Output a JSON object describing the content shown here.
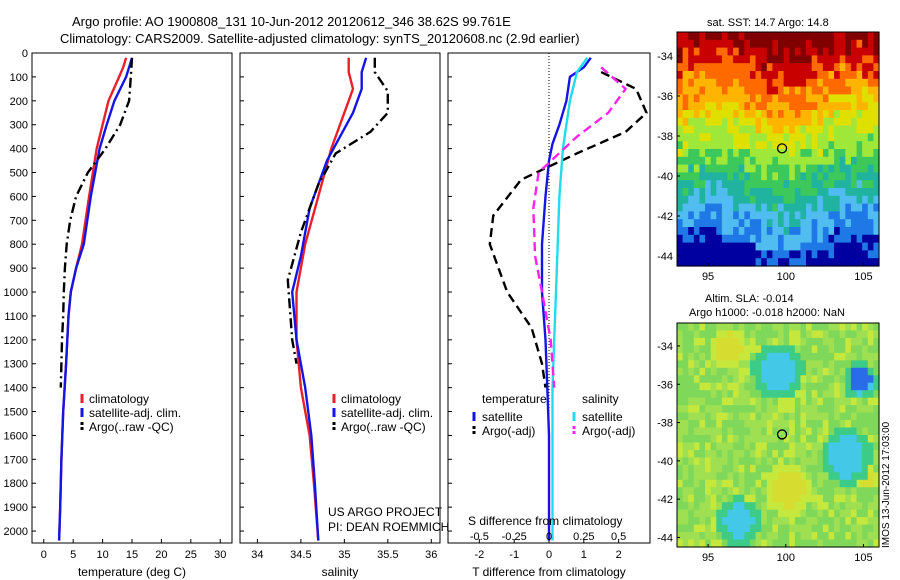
{
  "header": {
    "line1": "Argo profile: AO 1900808_131 10-Jun-2012 20120612_346 38.62S 99.761E",
    "line2": "Climatology: CARS2009. Satellite-adjusted climatology: synTS_20120608.nc (2.9d earlier)"
  },
  "colors": {
    "red": "#e8202a",
    "blue": "#1414e6",
    "black": "#000000",
    "cyan": "#22dcee",
    "magenta": "#ff22ee"
  },
  "project_note": {
    "line1": "US ARGO PROJECT",
    "line2": "PI: DEAN ROEMMICH"
  },
  "side_note": "IMOS 13-Jun-2012 17:03:00",
  "chart_data": [
    {
      "type": "line",
      "xlabel": "temperature (deg C)",
      "xlim": [
        -2,
        32
      ],
      "ylim": [
        2050,
        0
      ],
      "xticks": [
        "0",
        "5",
        "10",
        "15",
        "20",
        "25",
        "30"
      ],
      "yticks": [
        "0",
        "100",
        "200",
        "300",
        "400",
        "500",
        "600",
        "700",
        "800",
        "900",
        "1000",
        "1100",
        "1200",
        "1300",
        "1400",
        "1500",
        "1600",
        "1700",
        "1800",
        "1900",
        "2000"
      ],
      "legend": [
        "climatology",
        "satellite-adj. clim.",
        "Argo(..raw -QC)"
      ],
      "series": [
        {
          "name": "climatology",
          "color": "red",
          "dash": "solid",
          "points": [
            [
              14,
              20
            ],
            [
              13.5,
              60
            ],
            [
              12.8,
              100
            ],
            [
              11,
              200
            ],
            [
              10,
              300
            ],
            [
              9,
              400
            ],
            [
              7.7,
              600
            ],
            [
              6.5,
              800
            ],
            [
              5.5,
              900
            ],
            [
              4.6,
              1000
            ],
            [
              4.2,
              1100
            ],
            [
              3.8,
              1300
            ],
            [
              3.3,
              1500
            ],
            [
              3.0,
              1700
            ],
            [
              2.8,
              1900
            ],
            [
              2.6,
              2040
            ]
          ]
        },
        {
          "name": "satellite-adj. clim.",
          "color": "blue",
          "dash": "solid",
          "points": [
            [
              15,
              20
            ],
            [
              14.5,
              60
            ],
            [
              14,
              100
            ],
            [
              12,
              200
            ],
            [
              10.7,
              300
            ],
            [
              9.5,
              400
            ],
            [
              8,
              600
            ],
            [
              6.8,
              800
            ],
            [
              5.5,
              900
            ],
            [
              4.6,
              1000
            ],
            [
              4.2,
              1100
            ],
            [
              3.8,
              1300
            ],
            [
              3.3,
              1500
            ],
            [
              3.0,
              1700
            ],
            [
              2.8,
              1900
            ],
            [
              2.6,
              2040
            ]
          ]
        },
        {
          "name": "Argo(..raw -QC)",
          "color": "black",
          "dash": "dashdot",
          "points": [
            [
              15,
              20
            ],
            [
              14.8,
              100
            ],
            [
              14.5,
              200
            ],
            [
              13,
              300
            ],
            [
              10.5,
              400
            ],
            [
              7.5,
              500
            ],
            [
              5.5,
              600
            ],
            [
              4.5,
              700
            ],
            [
              3.9,
              800
            ],
            [
              3.6,
              900
            ],
            [
              3.4,
              1000
            ],
            [
              3.3,
              1100
            ],
            [
              3.1,
              1200
            ],
            [
              3.0,
              1300
            ],
            [
              2.9,
              1400
            ]
          ]
        }
      ]
    },
    {
      "type": "line",
      "xlabel": "salinity",
      "xlim": [
        33.8,
        36.1
      ],
      "ylim": [
        2050,
        0
      ],
      "xticks": [
        "34",
        "34.5",
        "35",
        "35.5",
        "36"
      ],
      "legend": [
        "climatology",
        "satellite-adj. clim.",
        "Argo(..raw -QC)"
      ],
      "series": [
        {
          "name": "climatology",
          "color": "red",
          "dash": "solid",
          "points": [
            [
              35.05,
              20
            ],
            [
              35.05,
              80
            ],
            [
              35.1,
              150
            ],
            [
              35.05,
              200
            ],
            [
              34.95,
              300
            ],
            [
              34.85,
              400
            ],
            [
              34.7,
              600
            ],
            [
              34.55,
              800
            ],
            [
              34.45,
              1000
            ],
            [
              34.45,
              1200
            ],
            [
              34.5,
              1400
            ],
            [
              34.6,
              1600
            ],
            [
              34.65,
              1800
            ],
            [
              34.7,
              2040
            ]
          ]
        },
        {
          "name": "satellite-adj. clim.",
          "color": "blue",
          "dash": "solid",
          "points": [
            [
              35.25,
              20
            ],
            [
              35.2,
              80
            ],
            [
              35.2,
              150
            ],
            [
              35.1,
              250
            ],
            [
              34.95,
              350
            ],
            [
              34.8,
              450
            ],
            [
              34.6,
              650
            ],
            [
              34.5,
              850
            ],
            [
              34.4,
              1000
            ],
            [
              34.45,
              1200
            ],
            [
              34.55,
              1400
            ],
            [
              34.62,
              1600
            ],
            [
              34.66,
              1800
            ],
            [
              34.7,
              2040
            ]
          ]
        },
        {
          "name": "Argo(..raw -QC)",
          "color": "black",
          "dash": "dashdot",
          "points": [
            [
              35.35,
              20
            ],
            [
              35.35,
              80
            ],
            [
              35.5,
              160
            ],
            [
              35.5,
              250
            ],
            [
              35.3,
              330
            ],
            [
              34.9,
              420
            ],
            [
              34.7,
              550
            ],
            [
              34.5,
              750
            ],
            [
              34.35,
              950
            ],
            [
              34.4,
              1200
            ],
            [
              34.45,
              1300
            ]
          ]
        }
      ]
    },
    {
      "type": "line",
      "title": "S difference from climatology",
      "xlabel": "T difference from climatology",
      "xlim": [
        -2.9,
        2.9
      ],
      "ylim": [
        2050,
        0
      ],
      "xticks_top": [
        "-0.5",
        "-0.25",
        "0",
        "0.25",
        "0.5"
      ],
      "xticks": [
        "-2",
        "-1",
        "0",
        "1",
        "2"
      ],
      "legend_groups": [
        {
          "title": "temperature",
          "entries": [
            "satellite",
            "Argo(-adj)"
          ]
        },
        {
          "title": "salinity",
          "entries": [
            "satellite",
            "Argo(-adj)"
          ]
        }
      ],
      "series": [
        {
          "name": "temperature satellite",
          "color": "blue",
          "dash": "solid",
          "points": [
            [
              1.2,
              20
            ],
            [
              1.0,
              60
            ],
            [
              0.6,
              100
            ],
            [
              0.5,
              200
            ],
            [
              0.3,
              300
            ],
            [
              0.1,
              380
            ],
            [
              0.0,
              450
            ],
            [
              -0.1,
              600
            ],
            [
              -0.2,
              800
            ],
            [
              -0.2,
              1000
            ],
            [
              -0.1,
              1200
            ],
            [
              -0.05,
              1400
            ],
            [
              0,
              1600
            ],
            [
              0,
              2040
            ]
          ]
        },
        {
          "name": "temperature Argo(-adj)",
          "color": "black",
          "dash": "dashed",
          "points": [
            [
              1.5,
              80
            ],
            [
              2.5,
              150
            ],
            [
              2.8,
              250
            ],
            [
              2.2,
              330
            ],
            [
              0.8,
              420
            ],
            [
              -0.8,
              530
            ],
            [
              -1.6,
              680
            ],
            [
              -1.7,
              800
            ],
            [
              -1.2,
              1000
            ],
            [
              -0.5,
              1150
            ],
            [
              -0.2,
              1300
            ],
            [
              -0.1,
              1400
            ]
          ]
        },
        {
          "name": "salinity satellite",
          "color": "cyan",
          "dash": "solid",
          "points": [
            [
              1.1,
              20
            ],
            [
              0.8,
              80
            ],
            [
              0.6,
              200
            ],
            [
              0.5,
              300
            ],
            [
              0.4,
              400
            ],
            [
              0.3,
              600
            ],
            [
              0.25,
              800
            ],
            [
              0.2,
              1000
            ],
            [
              0.15,
              1200
            ],
            [
              0.1,
              1400
            ],
            [
              0.1,
              1600
            ],
            [
              0.1,
              2040
            ]
          ]
        },
        {
          "name": "salinity Argo(-adj)",
          "color": "magenta",
          "dash": "dashed",
          "points": [
            [
              1.5,
              60
            ],
            [
              2.2,
              150
            ],
            [
              1.7,
              250
            ],
            [
              0.8,
              350
            ],
            [
              -0.3,
              500
            ],
            [
              -0.45,
              650
            ],
            [
              -0.4,
              850
            ],
            [
              -0.2,
              1000
            ],
            [
              0.05,
              1200
            ],
            [
              0.15,
              1400
            ]
          ]
        }
      ]
    }
  ],
  "maps": [
    {
      "title": "sat. SST: 14.7 Argo: 14.8",
      "xticks": [
        "95",
        "100",
        "105"
      ],
      "yticks": [
        "-34",
        "-36",
        "-38",
        "-40",
        "-42",
        "-44"
      ],
      "marker": {
        "lon": 99.761,
        "lat": -38.62
      },
      "palette": [
        "#800000",
        "#c80000",
        "#ff6a00",
        "#ffb400",
        "#e0e000",
        "#9fe83a",
        "#3cc85a",
        "#20b4a0",
        "#50bcf0",
        "#1e78e6",
        "#0000a0"
      ]
    },
    {
      "title_line1": "Altim. SLA: -0.014",
      "title_line2": "Argo h1000: -0.018 h2000: NaN",
      "xticks": [
        "95",
        "100",
        "105"
      ],
      "yticks": [
        "-34",
        "-36",
        "-38",
        "-40",
        "-42",
        "-44"
      ],
      "marker": {
        "lon": 99.761,
        "lat": -38.62
      },
      "palette": [
        "#7fd85a",
        "#9ee052",
        "#c6e83c",
        "#d7dc30",
        "#3ccc88",
        "#44c8e8",
        "#2a6ce8",
        "#ffc020"
      ]
    }
  ]
}
